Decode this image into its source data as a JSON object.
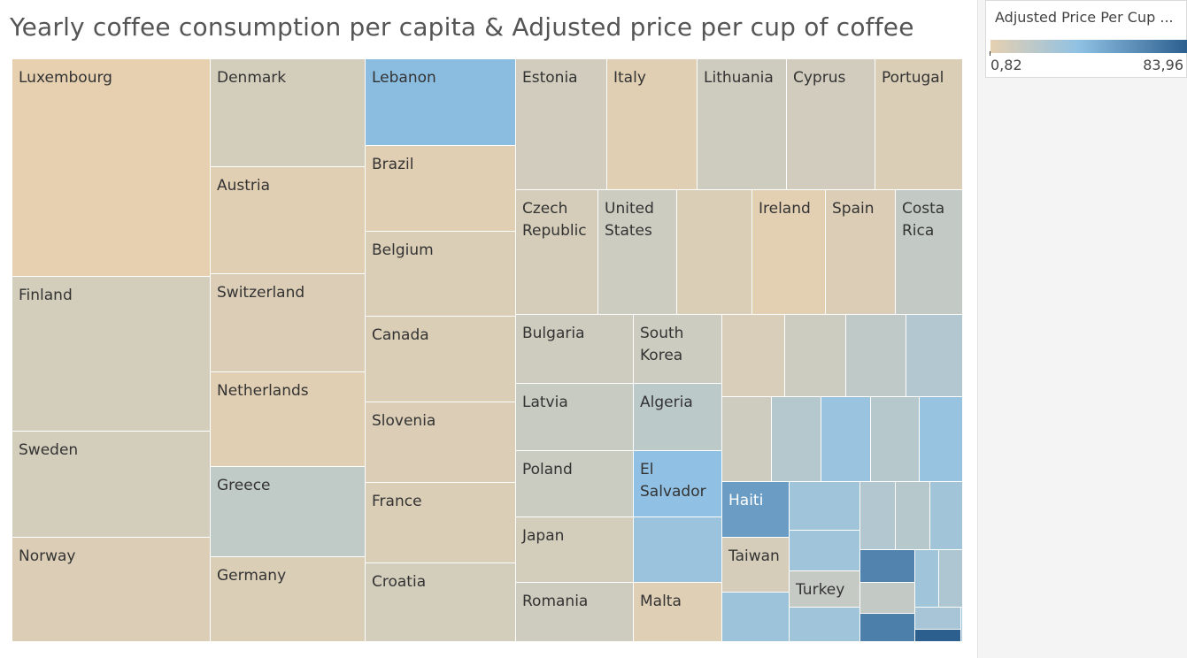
{
  "chart_data": {
    "type": "treemap",
    "title": "Yearly coffee consumption per capita & Adjusted price per cup of coffee",
    "size_measure": "Yearly coffee consumption per capita",
    "color_measure": "Adjusted Price Per Cup ...",
    "color_range": [
      0.82,
      83.96
    ],
    "colors": {
      "low": "#e6d0b0",
      "mid": "#8fc1e4",
      "high": "#2c5f8e"
    },
    "items": [
      {
        "name": "Luxembourg",
        "price": 1
      },
      {
        "name": "Finland",
        "price": 9
      },
      {
        "name": "Sweden",
        "price": 9
      },
      {
        "name": "Norway",
        "price": 5
      },
      {
        "name": "Denmark",
        "price": 9
      },
      {
        "name": "Austria",
        "price": 3
      },
      {
        "name": "Switzerland",
        "price": 5
      },
      {
        "name": "Netherlands",
        "price": 3
      },
      {
        "name": "Greece",
        "price": 17
      },
      {
        "name": "Germany",
        "price": 6
      },
      {
        "name": "Lebanon",
        "price": 40
      },
      {
        "name": "Brazil",
        "price": 3
      },
      {
        "name": "Belgium",
        "price": 6
      },
      {
        "name": "Canada",
        "price": 6
      },
      {
        "name": "Slovenia",
        "price": 5
      },
      {
        "name": "France",
        "price": 6
      },
      {
        "name": "Croatia",
        "price": 9
      },
      {
        "name": "Estonia",
        "price": 10
      },
      {
        "name": "Italy",
        "price": 3
      },
      {
        "name": "Lithuania",
        "price": 11
      },
      {
        "name": "Cyprus",
        "price": 10
      },
      {
        "name": "Portugal",
        "price": 6
      },
      {
        "name": "Czech Republic",
        "label": "Czech\nRepublic",
        "price": 8
      },
      {
        "name": "United States",
        "label": "United\nStates",
        "price": 12
      },
      {
        "name": "",
        "price": 6
      },
      {
        "name": "Ireland",
        "price": 2
      },
      {
        "name": "Spain",
        "price": 5
      },
      {
        "name": "Costa Rica",
        "label": "Costa\nRica",
        "price": 16
      },
      {
        "name": "Bulgaria",
        "price": 11
      },
      {
        "name": "South Korea",
        "label": "South\nKorea",
        "price": 12
      },
      {
        "name": "Latvia",
        "price": 14
      },
      {
        "name": "Algeria",
        "price": 19
      },
      {
        "name": "Poland",
        "price": 13
      },
      {
        "name": "El Salvador",
        "label": "El\nSalvador",
        "price": 38
      },
      {
        "name": "Japan",
        "price": 9
      },
      {
        "name": "",
        "price": 33
      },
      {
        "name": "Romania",
        "price": 11
      },
      {
        "name": "Malta",
        "price": 4
      },
      {
        "name": "",
        "price": 7
      },
      {
        "name": "",
        "price": 12
      },
      {
        "name": "",
        "price": 18
      },
      {
        "name": "",
        "price": 23
      },
      {
        "name": "",
        "price": 11
      },
      {
        "name": "",
        "price": 22
      },
      {
        "name": "",
        "price": 34
      },
      {
        "name": "",
        "price": 21
      },
      {
        "name": "",
        "price": 35
      },
      {
        "name": "Haiti",
        "price": 55
      },
      {
        "name": "",
        "price": 31
      },
      {
        "name": "",
        "price": 31
      },
      {
        "name": "Taiwan",
        "price": 8
      },
      {
        "name": "Turkey",
        "price": 15
      },
      {
        "name": "",
        "price": 32
      },
      {
        "name": "",
        "price": 31
      },
      {
        "name": "",
        "price": 23
      },
      {
        "name": "",
        "price": 21
      },
      {
        "name": "",
        "price": 30
      },
      {
        "name": "",
        "price": 67
      },
      {
        "name": "",
        "price": 16
      },
      {
        "name": "",
        "price": 69
      },
      {
        "name": "",
        "price": 31
      },
      {
        "name": "",
        "price": 25
      },
      {
        "name": "",
        "price": 28
      },
      {
        "name": "",
        "price": 84
      },
      {
        "name": "",
        "price": 30
      }
    ]
  },
  "legend": {
    "title": "Adjusted Price Per Cup ...",
    "min_label": "0,82",
    "max_label": "83,96"
  }
}
